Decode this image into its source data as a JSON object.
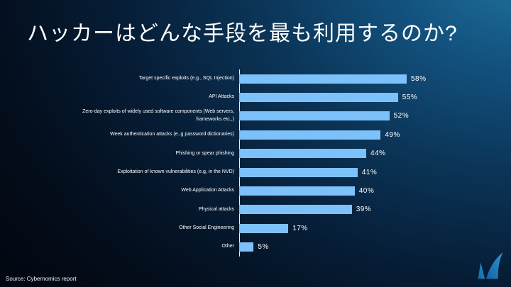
{
  "title": "ハッカーはどんな手段を最も利用するのか?",
  "source": "Source: Cybernomics report",
  "logo": {
    "name": "barracuda-swoosh",
    "color_dark": "#15639f",
    "color_light": "#2e93d4"
  },
  "chart_data": {
    "type": "bar",
    "orientation": "horizontal",
    "title": "",
    "xlabel": "",
    "ylabel": "",
    "unit": "%",
    "xlim": [
      0,
      60
    ],
    "grid": false,
    "legend": false,
    "bar_color": "#7dc1fa",
    "axis_color": "#e9eef2",
    "categories": [
      "Target specific exploits (e.g.,  SQL Injection)",
      "API Attacks",
      "Zero-day exploits of widely used software components (Web servers, frameworks etc.,)",
      "Week authentication attacks (e.,g password dictionaries)",
      "Phishing or spear phishing",
      "Exploitation of known vulnerabilities (e.g, in the NVD)",
      "Web Application Attacks",
      "Physical attacks",
      "Other Social Engineering",
      "Other"
    ],
    "values": [
      58,
      55,
      52,
      49,
      44,
      41,
      40,
      39,
      17,
      5
    ]
  }
}
